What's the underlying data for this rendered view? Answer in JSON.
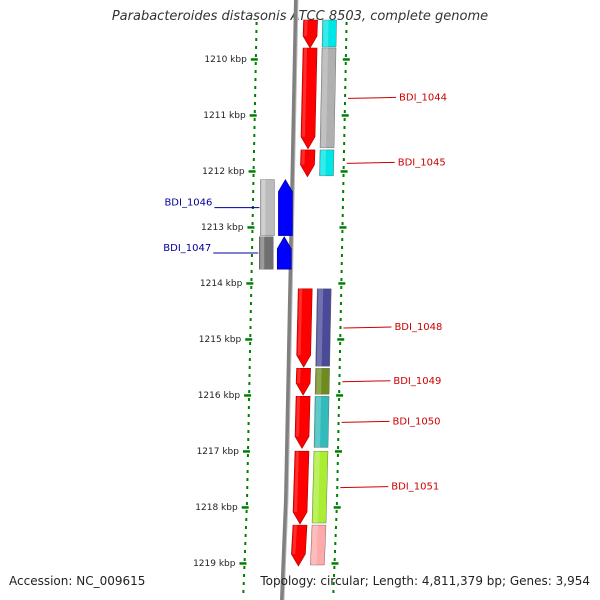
{
  "title": "Parabacteroides distasonis ATCC 8503, complete genome",
  "footer": {
    "accession": "Accession: NC_009615",
    "summary": "Topology: circular; Length: 4,811,379 bp; Genes: 3,954"
  },
  "scale": {
    "unit": "kbp",
    "start_kbp": 1209.3,
    "end_kbp": 1219.05,
    "tick_labels": [
      "1210 kbp",
      "1211 kbp",
      "1212 kbp",
      "1213 kbp",
      "1214 kbp",
      "1215 kbp",
      "1216 kbp",
      "1217 kbp",
      "1218 kbp",
      "1219 kbp"
    ]
  },
  "colors": {
    "forward_label": "#cc0000",
    "reverse_label": "#000099",
    "cds_forward": "#ff0000",
    "cds_reverse": "#0000ff",
    "scale_dots": "#008000",
    "backbone": "#808080"
  },
  "genes": [
    {
      "label": "",
      "strand": "+",
      "start_kbp": 1209.3,
      "end_kbp": 1209.8,
      "feature_color": "#00e5e5"
    },
    {
      "label": "BDI_1044",
      "strand": "+",
      "start_kbp": 1209.8,
      "end_kbp": 1211.6,
      "feature_color": "#b0b0b0"
    },
    {
      "label": "BDI_1045",
      "strand": "+",
      "start_kbp": 1211.62,
      "end_kbp": 1212.1,
      "feature_color": "#00e5e5"
    },
    {
      "label": "BDI_1046",
      "strand": "-",
      "start_kbp": 1212.15,
      "end_kbp": 1213.15,
      "feature_color": "#bbbbbb"
    },
    {
      "label": "BDI_1047",
      "strand": "-",
      "start_kbp": 1213.17,
      "end_kbp": 1213.75,
      "feature_color": "#707070"
    },
    {
      "label": "BDI_1048",
      "strand": "+",
      "start_kbp": 1214.1,
      "end_kbp": 1215.5,
      "feature_color": "#4a4a99"
    },
    {
      "label": "BDI_1049",
      "strand": "+",
      "start_kbp": 1215.52,
      "end_kbp": 1216.0,
      "feature_color": "#6e8c1e"
    },
    {
      "label": "BDI_1050",
      "strand": "+",
      "start_kbp": 1216.02,
      "end_kbp": 1216.95,
      "feature_color": "#33bbbb"
    },
    {
      "label": "BDI_1051",
      "strand": "+",
      "start_kbp": 1217.0,
      "end_kbp": 1218.3,
      "feature_color": "#aaee33"
    },
    {
      "label": "",
      "strand": "+",
      "start_kbp": 1218.32,
      "end_kbp": 1219.05,
      "feature_color": "#ffaaaa"
    }
  ]
}
